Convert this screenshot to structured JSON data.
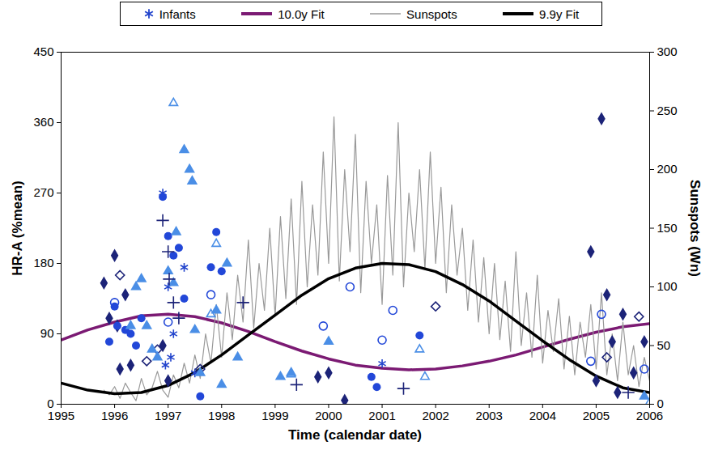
{
  "chart_data": {
    "type": "scatter",
    "xlabel": "Time (calendar date)",
    "ylabel": "HR-A (%mean)",
    "y2label": "Sunspots (Wn)",
    "xlim": [
      1995,
      2006
    ],
    "xticks": [
      1995,
      1996,
      1997,
      1998,
      1999,
      2000,
      2001,
      2002,
      2003,
      2004,
      2005,
      2006
    ],
    "ylim": [
      0,
      450
    ],
    "yticks": [
      0,
      90,
      180,
      270,
      360,
      450
    ],
    "y2lim": [
      0,
      300
    ],
    "y2ticks": [
      0,
      50,
      100,
      150,
      200,
      250,
      300
    ],
    "legend": "top",
    "series": [
      {
        "name": "Infants",
        "type": "scatter",
        "marker": "asterisk",
        "color": "#2244cc",
        "x": [
          1996.9,
          1997.0,
          1997.05,
          1997.1,
          1997.3,
          1997.5,
          2001.0,
          1996.95
        ],
        "values": [
          270,
          150,
          60,
          90,
          175,
          40,
          52,
          50
        ]
      },
      {
        "name": "10.0y Fit",
        "type": "line",
        "line_style": "thick",
        "color": "#7b1a73",
        "x": [
          1995,
          1995.5,
          1996,
          1996.5,
          1997,
          1997.5,
          1998,
          1998.5,
          1999,
          1999.5,
          2000,
          2000.5,
          2001,
          2001.5,
          2002,
          2002.5,
          2003,
          2003.5,
          2004,
          2004.5,
          2005,
          2005.5,
          2006
        ],
        "values": [
          82,
          95,
          105,
          113,
          115,
          112,
          104,
          93,
          80,
          68,
          58,
          50,
          46,
          44,
          45,
          49,
          55,
          63,
          73,
          83,
          92,
          99,
          103
        ]
      },
      {
        "name": "Sunspots",
        "type": "line",
        "line_style": "thin",
        "color": "#999999",
        "axis": "y2",
        "x": [
          1995.8,
          1995.9,
          1996.0,
          1996.1,
          1996.2,
          1996.3,
          1996.4,
          1996.5,
          1996.6,
          1996.7,
          1996.8,
          1996.9,
          1997.0,
          1997.1,
          1997.2,
          1997.3,
          1997.4,
          1997.5,
          1997.6,
          1997.7,
          1997.8,
          1997.9,
          1998.0,
          1998.1,
          1998.2,
          1998.3,
          1998.4,
          1998.5,
          1998.6,
          1998.7,
          1998.8,
          1998.9,
          1999.0,
          1999.1,
          1999.2,
          1999.3,
          1999.4,
          1999.5,
          1999.6,
          1999.7,
          1999.8,
          1999.9,
          2000.0,
          2000.1,
          2000.2,
          2000.3,
          2000.4,
          2000.5,
          2000.6,
          2000.7,
          2000.8,
          2000.9,
          2001.0,
          2001.1,
          2001.2,
          2001.3,
          2001.4,
          2001.5,
          2001.6,
          2001.7,
          2001.8,
          2001.9,
          2002.0,
          2002.1,
          2002.2,
          2002.3,
          2002.4,
          2002.5,
          2002.6,
          2002.7,
          2002.8,
          2002.9,
          2003.0,
          2003.1,
          2003.2,
          2003.3,
          2003.4,
          2003.5,
          2003.6,
          2003.7,
          2003.8,
          2003.9,
          2004.0,
          2004.1,
          2004.2,
          2004.3,
          2004.4,
          2004.5,
          2004.6,
          2004.7,
          2004.8,
          2004.9,
          2005.0,
          2005.1,
          2005.2,
          2005.3,
          2005.4,
          2005.5,
          2005.6,
          2005.7,
          2005.8,
          2005.9,
          2006.0
        ],
        "values": [
          12,
          8,
          15,
          5,
          18,
          10,
          3,
          22,
          8,
          14,
          28,
          12,
          6,
          25,
          14,
          35,
          18,
          42,
          22,
          60,
          35,
          85,
          40,
          95,
          55,
          110,
          70,
          140,
          65,
          120,
          80,
          150,
          75,
          160,
          90,
          175,
          85,
          190,
          100,
          170,
          110,
          215,
          120,
          245,
          105,
          200,
          130,
          230,
          95,
          190,
          120,
          170,
          85,
          195,
          110,
          240,
          100,
          180,
          130,
          200,
          115,
          215,
          120,
          185,
          95,
          170,
          110,
          150,
          80,
          140,
          70,
          125,
          60,
          120,
          55,
          105,
          45,
          130,
          50,
          95,
          40,
          110,
          35,
          80,
          45,
          90,
          30,
          75,
          25,
          70,
          40,
          85,
          30,
          95,
          25,
          60,
          20,
          70,
          25,
          50,
          15,
          40,
          20
        ]
      },
      {
        "name": "9.9y Fit",
        "type": "line",
        "line_style": "thick",
        "color": "#000000",
        "axis": "y2",
        "x": [
          1995,
          1995.5,
          1996,
          1996.5,
          1997,
          1997.5,
          1998,
          1998.5,
          1999,
          1999.5,
          2000,
          2000.5,
          2001,
          2001.5,
          2002,
          2002.5,
          2003,
          2003.5,
          2004,
          2004.5,
          2005,
          2005.5,
          2006
        ],
        "values": [
          18,
          12,
          9,
          10,
          16,
          27,
          42,
          59,
          76,
          93,
          107,
          116,
          120,
          119,
          113,
          102,
          88,
          71,
          54,
          38,
          24,
          14,
          10
        ]
      },
      {
        "type": "scatter",
        "marker": "diamond",
        "color": "#1c2378",
        "x": [
          1995.8,
          1995.9,
          1996.0,
          1996.05,
          1996.1,
          1996.2,
          1996.3,
          1996.9,
          1997.0,
          1999.8,
          2000.0,
          2000.3,
          2004.9,
          2005.1,
          2005.2,
          2005.3,
          2005.4,
          2005.5,
          2005.7,
          2005.9,
          2005.0
        ],
        "values": [
          155,
          110,
          190,
          100,
          45,
          140,
          50,
          75,
          30,
          35,
          40,
          5,
          195,
          365,
          140,
          80,
          15,
          115,
          40,
          80,
          30
        ]
      },
      {
        "type": "scatter",
        "marker": "open-diamond",
        "color": "#1c2378",
        "x": [
          1996.1,
          1996.6,
          1996.8,
          1997.6,
          2005.2,
          2005.8,
          2002.0
        ],
        "values": [
          165,
          55,
          70,
          45,
          60,
          112,
          125
        ]
      },
      {
        "type": "scatter",
        "marker": "circle",
        "color": "#2247d8",
        "x": [
          1995.9,
          1996.0,
          1996.05,
          1996.2,
          1996.3,
          1996.4,
          1996.5,
          1996.9,
          1997.0,
          1997.1,
          1997.2,
          1997.3,
          1997.6,
          1997.8,
          1997.9,
          2000.8,
          2000.9,
          2001.7,
          1998.0
        ],
        "values": [
          80,
          125,
          100,
          95,
          90,
          75,
          110,
          265,
          215,
          190,
          200,
          135,
          10,
          175,
          220,
          35,
          22,
          88,
          170
        ]
      },
      {
        "type": "scatter",
        "marker": "open-circle",
        "color": "#2247d8",
        "x": [
          1996.0,
          1997.0,
          1997.8,
          1999.9,
          2000.4,
          2001.0,
          2001.2,
          2004.9,
          2005.1,
          2005.9
        ],
        "values": [
          130,
          105,
          140,
          100,
          150,
          82,
          120,
          55,
          115,
          45
        ]
      },
      {
        "type": "scatter",
        "marker": "triangle",
        "color": "#4a8ee6",
        "x": [
          1996.3,
          1996.4,
          1996.5,
          1996.6,
          1996.7,
          1996.8,
          1997.1,
          1997.15,
          1997.3,
          1997.4,
          1997.45,
          1997.5,
          1997.6,
          1997.9,
          1998.0,
          1998.1,
          1998.3,
          1999.1,
          1999.3,
          2000.0,
          2005.9,
          1997.0
        ],
        "values": [
          100,
          150,
          160,
          100,
          70,
          60,
          155,
          220,
          325,
          300,
          285,
          95,
          40,
          120,
          25,
          180,
          60,
          35,
          40,
          80,
          10,
          170
        ]
      },
      {
        "type": "scatter",
        "marker": "open-triangle",
        "color": "#4a8ee6",
        "x": [
          1997.1,
          1997.9,
          1997.8,
          1999.3,
          2001.7,
          2001.8,
          2006.0
        ],
        "values": [
          385,
          205,
          115,
          38,
          70,
          35,
          2
        ]
      },
      {
        "type": "scatter",
        "marker": "plus",
        "color": "#1c2378",
        "x": [
          1996.9,
          1997.0,
          1997.02,
          1997.1,
          1997.2,
          1998.4,
          1999.4,
          2001.4,
          2005.6
        ],
        "values": [
          235,
          195,
          160,
          130,
          110,
          130,
          25,
          20,
          15
        ]
      }
    ]
  }
}
